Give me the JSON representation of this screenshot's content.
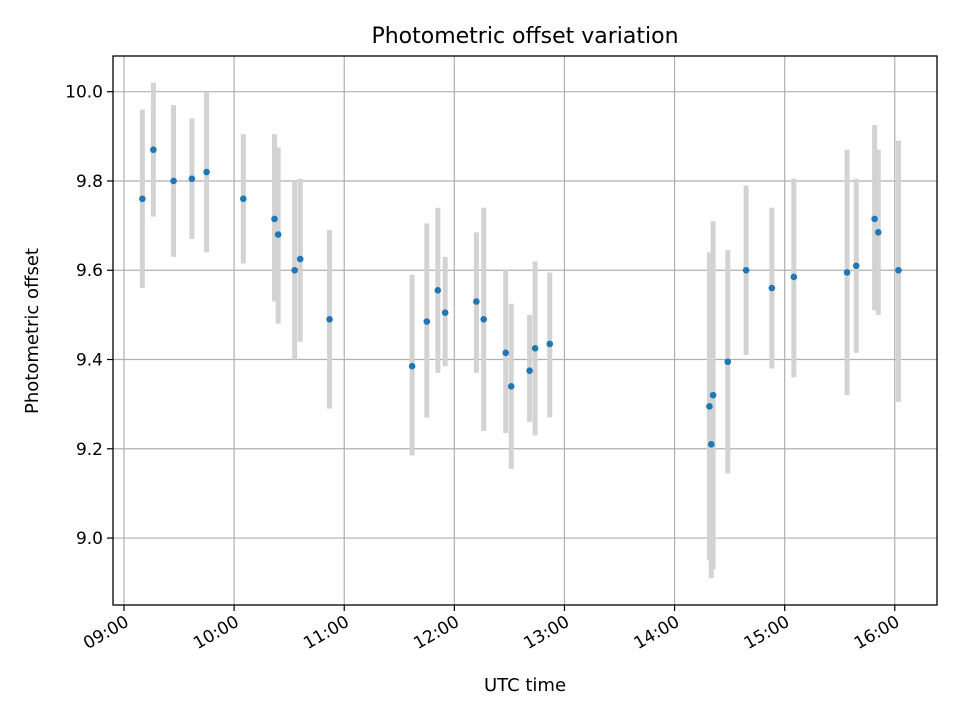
{
  "chart_data": {
    "type": "scatter",
    "title": "Photometric offset variation",
    "xlabel": "UTC time",
    "ylabel": "Photometric offset",
    "xlim": [
      "08:54",
      "16:23"
    ],
    "ylim": [
      8.85,
      10.08
    ],
    "grid": true,
    "x_ticks": [
      "09:00",
      "10:00",
      "11:00",
      "12:00",
      "13:00",
      "14:00",
      "15:00",
      "16:00"
    ],
    "y_ticks": [
      "9.0",
      "9.2",
      "9.4",
      "9.6",
      "9.8",
      "10.0"
    ],
    "colors": {
      "point": "#1f77b4",
      "errorbar": "#d3d3d3"
    },
    "series": [
      {
        "points": [
          {
            "x": "09:10",
            "y": 9.76,
            "ylow": 9.56,
            "yhigh": 9.96
          },
          {
            "x": "09:16",
            "y": 9.87,
            "ylow": 9.72,
            "yhigh": 10.02
          },
          {
            "x": "09:27",
            "y": 9.8,
            "ylow": 9.63,
            "yhigh": 9.97
          },
          {
            "x": "09:37",
            "y": 9.805,
            "ylow": 9.67,
            "yhigh": 9.94
          },
          {
            "x": "09:45",
            "y": 9.82,
            "ylow": 9.64,
            "yhigh": 10.0
          },
          {
            "x": "10:05",
            "y": 9.76,
            "ylow": 9.615,
            "yhigh": 9.905
          },
          {
            "x": "10:22",
            "y": 9.715,
            "ylow": 9.53,
            "yhigh": 9.905
          },
          {
            "x": "10:24",
            "y": 9.68,
            "ylow": 9.48,
            "yhigh": 9.875
          },
          {
            "x": "10:33",
            "y": 9.6,
            "ylow": 9.4,
            "yhigh": 9.8
          },
          {
            "x": "10:36",
            "y": 9.625,
            "ylow": 9.44,
            "yhigh": 9.805
          },
          {
            "x": "10:52",
            "y": 9.49,
            "ylow": 9.29,
            "yhigh": 9.69
          },
          {
            "x": "11:37",
            "y": 9.385,
            "ylow": 9.185,
            "yhigh": 9.59
          },
          {
            "x": "11:45",
            "y": 9.485,
            "ylow": 9.27,
            "yhigh": 9.705
          },
          {
            "x": "11:51",
            "y": 9.555,
            "ylow": 9.37,
            "yhigh": 9.74
          },
          {
            "x": "11:55",
            "y": 9.505,
            "ylow": 9.385,
            "yhigh": 9.63
          },
          {
            "x": "12:12",
            "y": 9.53,
            "ylow": 9.37,
            "yhigh": 9.685
          },
          {
            "x": "12:16",
            "y": 9.49,
            "ylow": 9.24,
            "yhigh": 9.74
          },
          {
            "x": "12:28",
            "y": 9.415,
            "ylow": 9.235,
            "yhigh": 9.6
          },
          {
            "x": "12:31",
            "y": 9.34,
            "ylow": 9.155,
            "yhigh": 9.525
          },
          {
            "x": "12:41",
            "y": 9.375,
            "ylow": 9.26,
            "yhigh": 9.5
          },
          {
            "x": "12:44",
            "y": 9.425,
            "ylow": 9.23,
            "yhigh": 9.62
          },
          {
            "x": "12:52",
            "y": 9.435,
            "ylow": 9.27,
            "yhigh": 9.595
          },
          {
            "x": "14:19",
            "y": 9.295,
            "ylow": 8.95,
            "yhigh": 9.64
          },
          {
            "x": "14:20",
            "y": 9.21,
            "ylow": 8.91,
            "yhigh": 9.51
          },
          {
            "x": "14:21",
            "y": 9.32,
            "ylow": 8.93,
            "yhigh": 9.71
          },
          {
            "x": "14:29",
            "y": 9.395,
            "ylow": 9.145,
            "yhigh": 9.645
          },
          {
            "x": "14:39",
            "y": 9.6,
            "ylow": 9.41,
            "yhigh": 9.79
          },
          {
            "x": "14:53",
            "y": 9.56,
            "ylow": 9.38,
            "yhigh": 9.74
          },
          {
            "x": "15:05",
            "y": 9.585,
            "ylow": 9.36,
            "yhigh": 9.805
          },
          {
            "x": "15:34",
            "y": 9.595,
            "ylow": 9.32,
            "yhigh": 9.87
          },
          {
            "x": "15:39",
            "y": 9.61,
            "ylow": 9.415,
            "yhigh": 9.805
          },
          {
            "x": "15:49",
            "y": 9.715,
            "ylow": 9.51,
            "yhigh": 9.925
          },
          {
            "x": "15:51",
            "y": 9.685,
            "ylow": 9.5,
            "yhigh": 9.87
          },
          {
            "x": "16:02",
            "y": 9.6,
            "ylow": 9.305,
            "yhigh": 9.89
          }
        ]
      }
    ]
  }
}
